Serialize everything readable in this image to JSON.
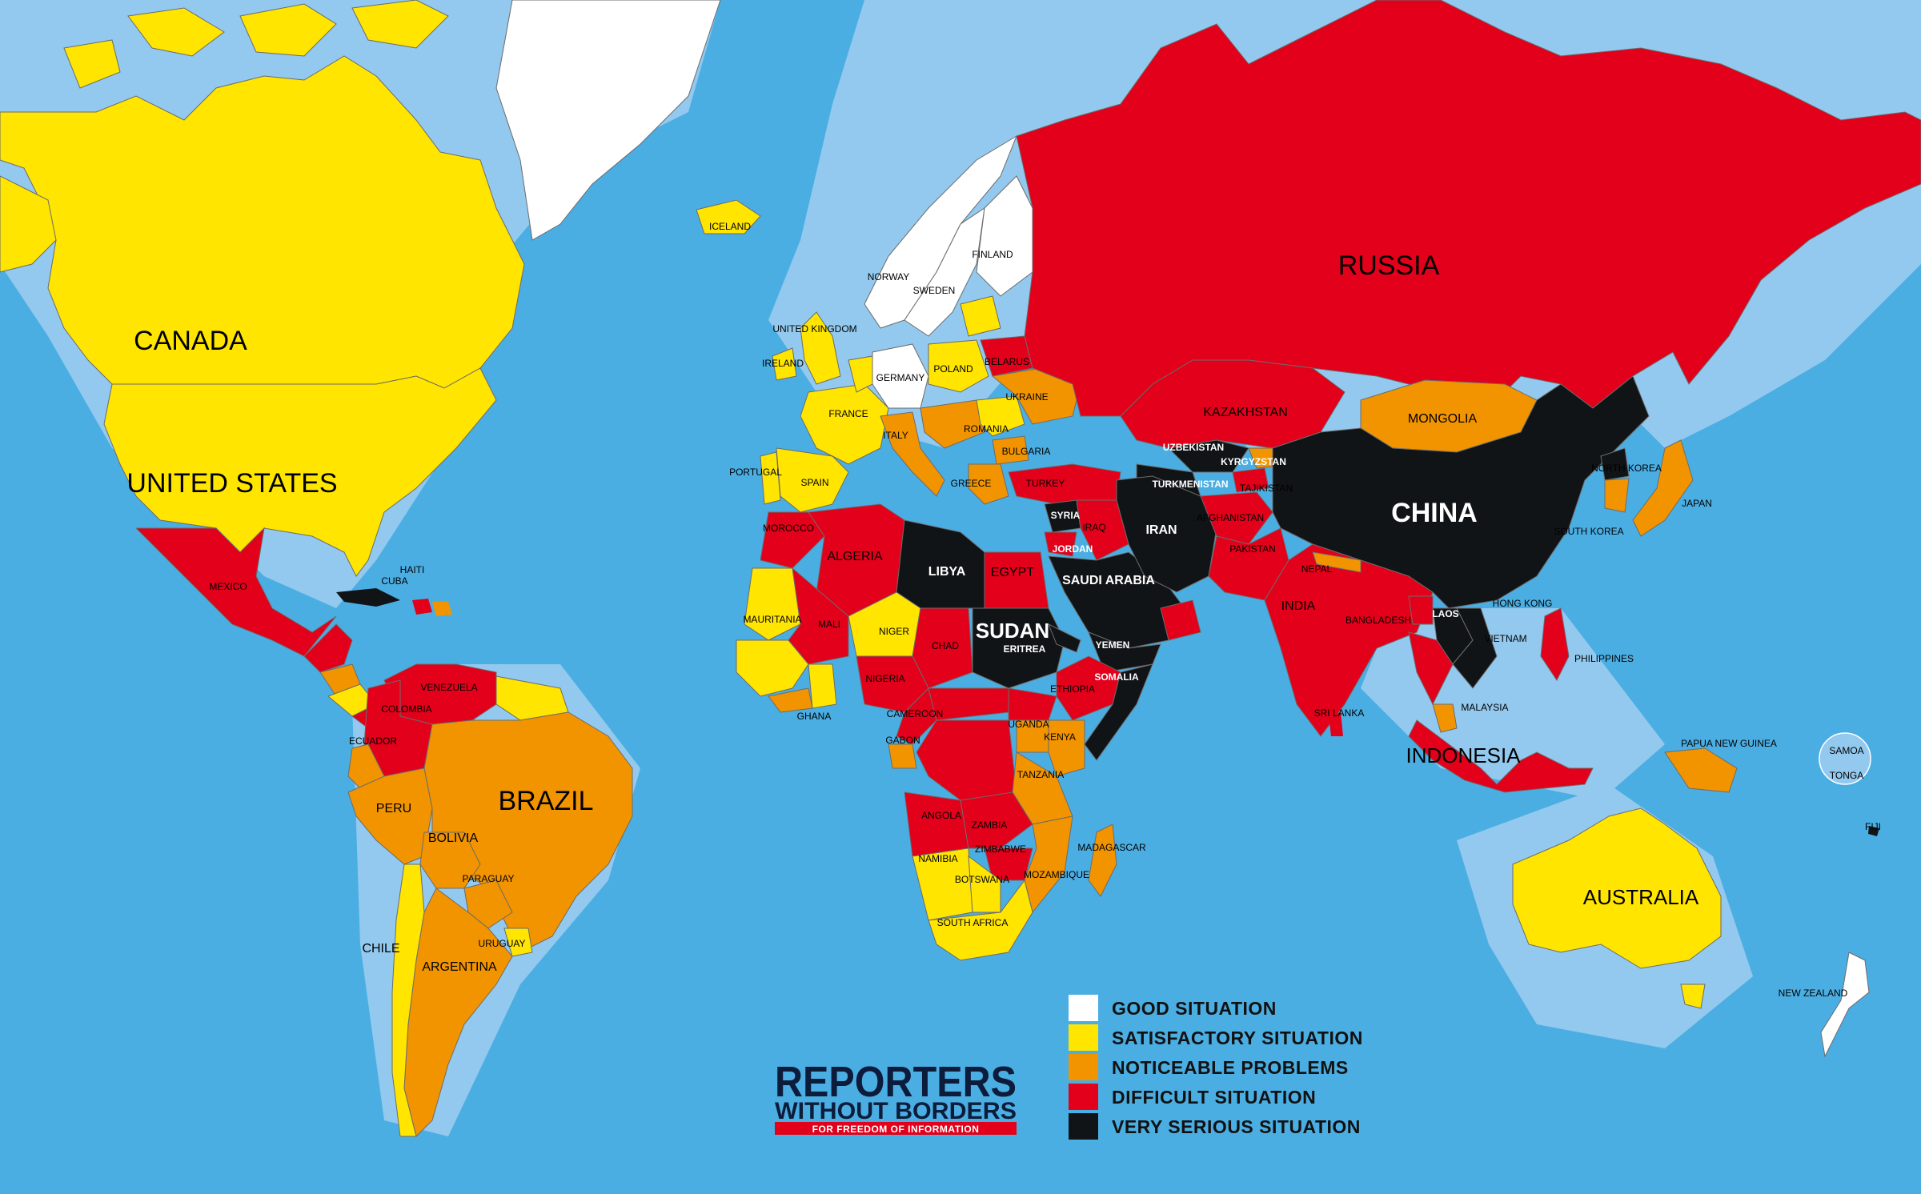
{
  "colors": {
    "ocean": "#4BAEE3",
    "shelf": "#93C9EE",
    "good": "#FFFFFF",
    "satisfactory": "#FFE500",
    "noticeable": "#F29400",
    "difficult": "#E2001A",
    "very_serious": "#111417"
  },
  "legend": {
    "items": [
      {
        "key": "good",
        "label": "GOOD SITUATION"
      },
      {
        "key": "satisfactory",
        "label": "SATISFACTORY SITUATION"
      },
      {
        "key": "noticeable",
        "label": "NOTICEABLE PROBLEMS"
      },
      {
        "key": "difficult",
        "label": "DIFFICULT SITUATION"
      },
      {
        "key": "very_serious",
        "label": "VERY SERIOUS SITUATION"
      }
    ]
  },
  "logo": {
    "line1": "REPORTERS",
    "line2": "WITHOUT BORDERS",
    "tagline": "FOR FREEDOM OF INFORMATION"
  },
  "countries": {
    "canada": "CANADA",
    "united_states": "UNITED STATES",
    "russia": "RUSSIA",
    "china": "CHINA",
    "brazil": "BRAZIL",
    "australia": "AUSTRALIA",
    "indonesia": "INDONESIA",
    "india": "INDIA",
    "iran": "IRAN",
    "kazakhstan": "KAZAKHSTAN",
    "mongolia": "MONGOLIA",
    "sudan": "SUDAN",
    "libya": "LIBYA",
    "algeria": "ALGERIA",
    "egypt": "EGYPT",
    "saudi_arabia": "SAUDI ARABIA",
    "yemen": "YEMEN",
    "mexico": "MEXICO",
    "colombia": "COLOMBIA",
    "venezuela": "VENEZUELA",
    "peru": "PERU",
    "bolivia": "BOLIVIA",
    "paraguay": "PARAGUAY",
    "argentina": "ARGENTINA",
    "chile": "CHILE",
    "uruguay": "URUGUAY",
    "ecuador": "ECUADOR",
    "iceland": "ICELAND",
    "norway": "NORWAY",
    "sweden": "SWEDEN",
    "finland": "FINLAND",
    "united_kingdom": "UNITED KINGDOM",
    "ireland": "IRELAND",
    "france": "FRANCE",
    "spain": "SPAIN",
    "portugal": "PORTUGAL",
    "italy": "ITALY",
    "germany": "GERMANY",
    "poland": "POLAND",
    "ukraine": "UKRAINE",
    "belarus": "BELARUS",
    "romania": "ROMANIA",
    "turkey": "TURKEY",
    "syria": "SYRIA",
    "iraq": "IRAQ",
    "jordan": "JORDAN",
    "afghanistan": "AFGHANISTAN",
    "pakistan": "PAKISTAN",
    "uzbekistan": "UZBEKISTAN",
    "turkmenistan": "TURKMENISTAN",
    "kyrgyzstan": "KYRGYZSTAN",
    "tajikistan": "TAJIKISTAN",
    "nepal": "NEPAL",
    "japan": "JAPAN",
    "north_korea": "NORTH KOREA",
    "south_korea": "SOUTH KOREA",
    "laos": "LAOS",
    "vietnam": "VIETNAM",
    "philippines": "PHILIPPINES",
    "malaysia": "MALAYSIA",
    "papua_new_guinea": "PAPUA NEW GUINEA",
    "new_zealand": "NEW ZEALAND",
    "fiji": "FIJI",
    "morocco": "MOROCCO",
    "mauritania": "MAURITANIA",
    "mali": "MALI",
    "niger": "NIGER",
    "chad": "CHAD",
    "nigeria": "NIGERIA",
    "ethiopia": "ETHIOPIA",
    "somalia": "SOMALIA",
    "eritrea": "ERITREA",
    "kenya": "KENYA",
    "tanzania": "TANZANIA",
    "angola": "ANGOLA",
    "zambia": "ZAMBIA",
    "zimbabwe": "ZIMBABWE",
    "namibia": "NAMIBIA",
    "botswana": "BOTSWANA",
    "south_africa": "SOUTH AFRICA",
    "mozambique": "MOZAMBIQUE",
    "madagascar": "MADAGASCAR",
    "cuba": "CUBA",
    "haiti": "HAITI",
    "greece": "GREECE",
    "bulgaria": "BULGARIA",
    "cameroon": "CAMEROON",
    "gabon": "GABON",
    "uganda": "UGANDA",
    "ghana": "GHANA",
    "sri_lanka": "SRI LANKA",
    "bangladesh": "BANGLADESH",
    "hong_kong": "HONG KONG",
    "samoa": "SAMOA",
    "tonga": "TONGA"
  }
}
